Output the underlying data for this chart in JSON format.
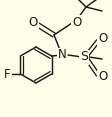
{
  "bg_color": "#fefde8",
  "bond_color": "#1a1a1a",
  "font_size": 8,
  "figsize": [
    1.12,
    1.17
  ],
  "dpi": 100,
  "xlim": [
    0,
    112
  ],
  "ylim": [
    0,
    117
  ]
}
